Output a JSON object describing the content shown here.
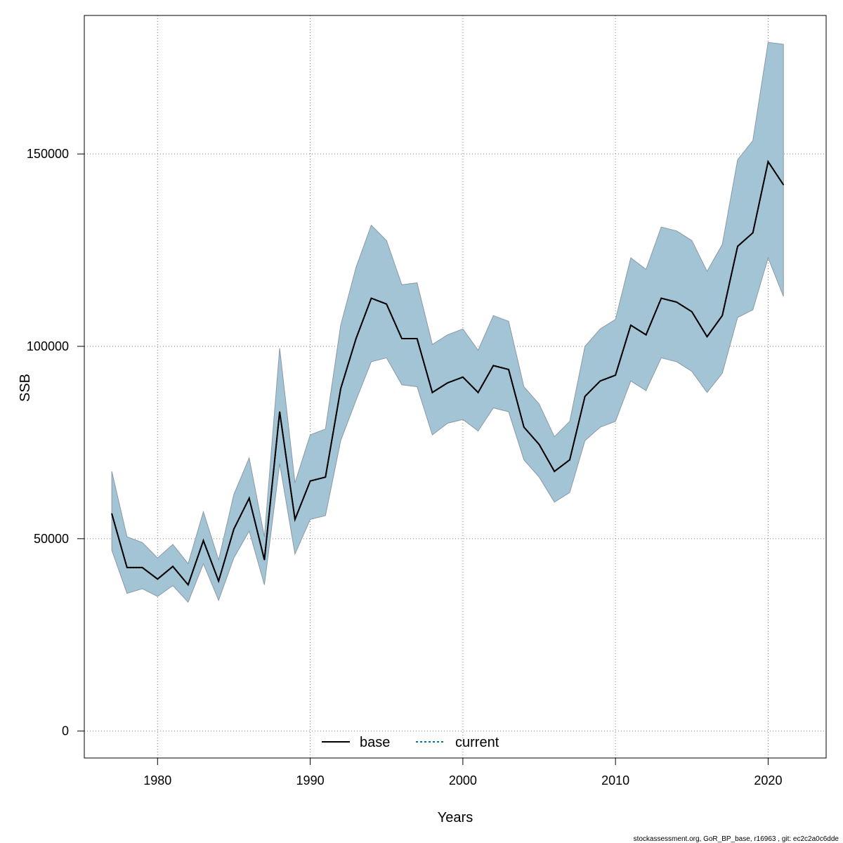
{
  "chart_data": {
    "type": "line",
    "xlabel": "Years",
    "ylabel": "SSB",
    "xlim": [
      1975.2,
      2023.8
    ],
    "ylim": [
      -7000,
      186000
    ],
    "x_ticks": [
      1980,
      1990,
      2000,
      2010,
      2020
    ],
    "y_ticks": [
      0,
      50000,
      100000,
      150000
    ],
    "x_tick_labels": [
      "1980",
      "1990",
      "2000",
      "2010",
      "2020"
    ],
    "y_tick_labels": [
      "0",
      "50000",
      "100000",
      "150000"
    ],
    "grid": true,
    "legend_position": "bottom-center",
    "x": [
      1977,
      1978,
      1979,
      1980,
      1981,
      1982,
      1983,
      1984,
      1985,
      1986,
      1987,
      1988,
      1989,
      1990,
      1991,
      1992,
      1993,
      1994,
      1995,
      1996,
      1997,
      1998,
      1999,
      2000,
      2001,
      2002,
      2003,
      2004,
      2005,
      2006,
      2007,
      2008,
      2009,
      2010,
      2011,
      2012,
      2013,
      2014,
      2015,
      2016,
      2017,
      2018,
      2019,
      2020,
      2021
    ],
    "series": [
      {
        "name": "base",
        "color": "#000000",
        "style": "solid",
        "values": [
          56500,
          42500,
          42500,
          39500,
          42800,
          38000,
          49500,
          39000,
          52500,
          60500,
          44500,
          83000,
          55000,
          65000,
          66000,
          89000,
          102000,
          112500,
          111000,
          102000,
          102000,
          88000,
          90500,
          92000,
          88000,
          95000,
          94000,
          79000,
          74500,
          67500,
          70500,
          87000,
          91000,
          92500,
          105500,
          103000,
          112500,
          111500,
          109000,
          102500,
          108000,
          126000,
          129500,
          148000,
          142000
        ]
      },
      {
        "name": "current",
        "color": "#0072b2",
        "style": "dotted",
        "values": [
          56500,
          42500,
          42500,
          39500,
          42800,
          38000,
          49500,
          39000,
          52500,
          60500,
          44500,
          83000,
          55000,
          65000,
          66000,
          89000,
          102000,
          112500,
          111000,
          102000,
          102000,
          88000,
          90500,
          92000,
          88000,
          95000,
          94000,
          79000,
          74500,
          67500,
          70500,
          87000,
          91000,
          92500,
          105500,
          103000,
          112500,
          111500,
          109000,
          102500,
          108000,
          126000,
          129500,
          148000,
          142000
        ]
      }
    ],
    "band": {
      "color": "#a3c4d5",
      "upper": [
        67500,
        50500,
        49000,
        45000,
        48500,
        43500,
        57000,
        44500,
        61500,
        71000,
        50500,
        99500,
        64500,
        77000,
        78500,
        105500,
        120500,
        131500,
        127500,
        116000,
        116500,
        100500,
        103000,
        104500,
        99000,
        108000,
        106500,
        89500,
        85000,
        76500,
        80500,
        100000,
        104500,
        107000,
        123000,
        120000,
        131000,
        130000,
        127500,
        119500,
        126500,
        148500,
        153500,
        179000,
        178500
      ],
      "lower": [
        47000,
        35800,
        37000,
        35000,
        37800,
        33500,
        43500,
        34000,
        45000,
        52000,
        38000,
        69500,
        46000,
        55000,
        56000,
        75500,
        86000,
        96000,
        97000,
        90000,
        89500,
        77000,
        80000,
        81000,
        78000,
        84000,
        83000,
        70500,
        66000,
        59500,
        62000,
        75500,
        79000,
        80500,
        91000,
        88500,
        97000,
        96000,
        93500,
        88000,
        93000,
        107500,
        109500,
        123000,
        113000
      ]
    }
  },
  "footer_text": "stockassessment.org, GoR_BP_base, r16963 , git: ec2c2a0c6dde"
}
